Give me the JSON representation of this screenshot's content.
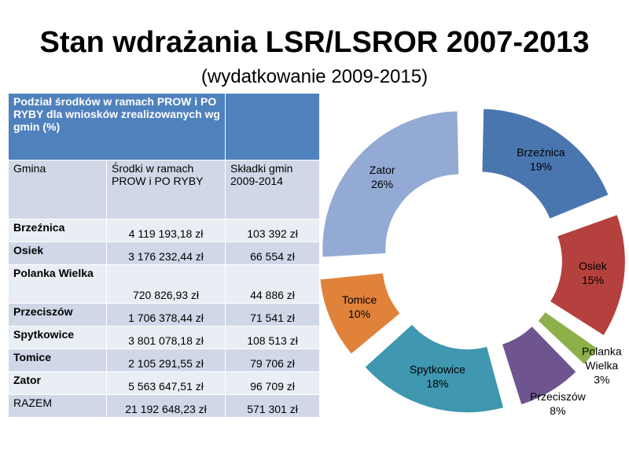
{
  "title": "Stan wdrażania LSR/LSROR 2007-2013",
  "subtitle": "(wydatkowanie 2009-2015)",
  "table": {
    "header": "Podział środków w ramach PROW i PO RYBY dla wniosków zrealizowanych wg gmin (%)",
    "columns": [
      "Gmina",
      "Środki w ramach PROW i PO RYBY",
      "Składki gmin 2009-2014"
    ],
    "rows": [
      {
        "gmina": "Brzeźnica",
        "srodki": "4 119 193,18 zł",
        "skladki": "103 392 zł"
      },
      {
        "gmina": "Osiek",
        "srodki": "3 176 232,44 zł",
        "skladki": "66 554 zł"
      },
      {
        "gmina": "Polanka Wielka",
        "srodki": "720 826,93 zł",
        "skladki": "44 886 zł"
      },
      {
        "gmina": "Przeciszów",
        "srodki": "1 706 378,44 zł",
        "skladki": "71 541 zł"
      },
      {
        "gmina": "Spytkowice",
        "srodki": "3 801 078,18 zł",
        "skladki": "108 513 zł"
      },
      {
        "gmina": "Tomice",
        "srodki": "2 105 291,55 zł",
        "skladki": "79 706 zł"
      },
      {
        "gmina": "Zator",
        "srodki": "5 563 647,51 zł",
        "skladki": "96 709 zł"
      }
    ],
    "total": {
      "gmina": "RAZEM",
      "srodki": "21 192 648,23 zł",
      "skladki": "571 301 zł"
    }
  },
  "chart_data": {
    "type": "pie",
    "title": "",
    "slices": [
      {
        "label": "Brzeźnica",
        "value": 19,
        "value_label": "19%",
        "color": "#4a76b0"
      },
      {
        "label": "Osiek",
        "value": 15,
        "value_label": "15%",
        "color": "#b5413e"
      },
      {
        "label": "Polanka Wielka",
        "value": 3,
        "value_label": "3%",
        "color": "#8db04a"
      },
      {
        "label": "Przeciszów",
        "value": 8,
        "value_label": "8%",
        "color": "#6e558f"
      },
      {
        "label": "Spytkowice",
        "value": 18,
        "value_label": "18%",
        "color": "#3f97b0"
      },
      {
        "label": "Tomice",
        "value": 10,
        "value_label": "10%",
        "color": "#e0823a"
      },
      {
        "label": "Zator",
        "value": 26,
        "value_label": "26%",
        "color": "#93aad4"
      }
    ]
  }
}
